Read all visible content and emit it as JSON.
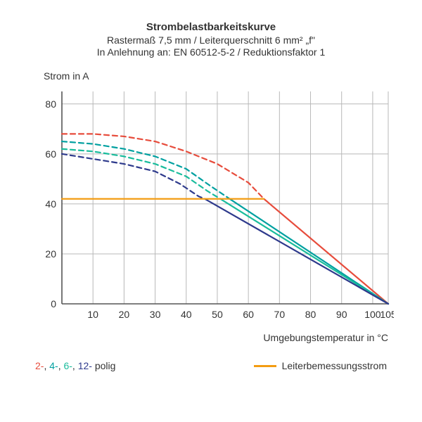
{
  "header": {
    "title": "Strombelastbarkeitskurve",
    "subtitle1": "Rastermaß 7,5 mm / Leiterquerschnitt 6 mm² „f\"",
    "subtitle2": "In Anlehnung an: EN 60512-5-2 / Reduktionsfaktor 1"
  },
  "chart": {
    "type": "line",
    "ylabel": "Strom in A",
    "xlabel": "Umgebungstemperatur in °C",
    "xlim": [
      0,
      105
    ],
    "ylim": [
      0,
      85
    ],
    "xticks": [
      10,
      20,
      30,
      40,
      50,
      60,
      70,
      80,
      90,
      100,
      105
    ],
    "yticks": [
      0,
      20,
      40,
      60,
      80
    ],
    "grid_color": "#b8b8b8",
    "axis_color": "#555555",
    "background_color": "#ffffff",
    "line_width_solid": 2.2,
    "line_width_dashed": 2.2,
    "dash_pattern": "7,5",
    "series": [
      {
        "name": "2-polig-dashed",
        "color": "#e74c3c",
        "style": "dashed",
        "points": [
          [
            0,
            68
          ],
          [
            10,
            68
          ],
          [
            20,
            67
          ],
          [
            30,
            65
          ],
          [
            40,
            61
          ],
          [
            50,
            56
          ],
          [
            60,
            48.5
          ],
          [
            65,
            42
          ]
        ]
      },
      {
        "name": "2-polig-solid",
        "color": "#e74c3c",
        "style": "solid",
        "points": [
          [
            65,
            42
          ],
          [
            105,
            0
          ]
        ]
      },
      {
        "name": "4-polig-dashed",
        "color": "#00a0a0",
        "style": "dashed",
        "points": [
          [
            0,
            65
          ],
          [
            10,
            64
          ],
          [
            20,
            62
          ],
          [
            30,
            59
          ],
          [
            40,
            54
          ],
          [
            48,
            47
          ],
          [
            54,
            42
          ]
        ]
      },
      {
        "name": "4-polig-solid",
        "color": "#00a0a0",
        "style": "solid",
        "points": [
          [
            54,
            42
          ],
          [
            105,
            0
          ]
        ]
      },
      {
        "name": "6-polig-dashed",
        "color": "#1abc9c",
        "style": "dashed",
        "points": [
          [
            0,
            62
          ],
          [
            10,
            61
          ],
          [
            20,
            59
          ],
          [
            30,
            56
          ],
          [
            40,
            51
          ],
          [
            47,
            45
          ],
          [
            51,
            42
          ]
        ]
      },
      {
        "name": "6-polig-solid",
        "color": "#1abc9c",
        "style": "solid",
        "points": [
          [
            51,
            42
          ],
          [
            105,
            0
          ]
        ]
      },
      {
        "name": "12-polig-dashed",
        "color": "#2e3a8c",
        "style": "dashed",
        "points": [
          [
            0,
            60
          ],
          [
            10,
            58
          ],
          [
            20,
            56
          ],
          [
            30,
            53
          ],
          [
            38,
            48
          ],
          [
            44,
            43
          ],
          [
            46,
            42
          ]
        ]
      },
      {
        "name": "12-polig-solid",
        "color": "#2e3a8c",
        "style": "solid",
        "points": [
          [
            46,
            42
          ],
          [
            105,
            0
          ]
        ]
      },
      {
        "name": "leiterbemessungsstrom",
        "color": "#f39c12",
        "style": "solid",
        "points": [
          [
            0,
            42
          ],
          [
            65,
            42
          ]
        ]
      }
    ]
  },
  "legend": {
    "poles": [
      {
        "label": "2-",
        "color": "#e74c3c"
      },
      {
        "label": "4-",
        "color": "#00a0a0"
      },
      {
        "label": "6-",
        "color": "#1abc9c"
      },
      {
        "label": "12-",
        "color": "#2e3a8c"
      }
    ],
    "poles_suffix": " polig",
    "rating_label": "Leiterbemessungsstrom",
    "rating_color": "#f39c12"
  }
}
